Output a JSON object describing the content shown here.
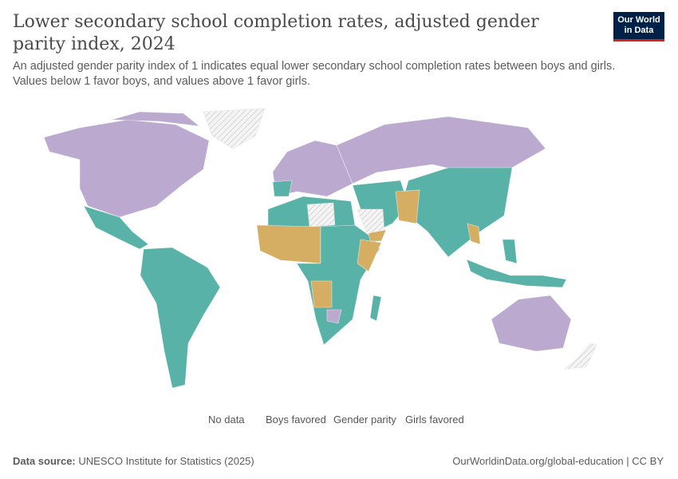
{
  "header": {
    "title": "Lower secondary school completion rates, adjusted gender parity index, 2024",
    "subtitle": "An adjusted gender parity index of 1 indicates equal lower secondary school completion rates between boys and girls. Values below 1 favor boys, and values above 1 favor girls.",
    "logo": "Our World in Data"
  },
  "chart_data": {
    "type": "map",
    "title": "Lower secondary school completion rates, adjusted gender parity index, 2024",
    "legend": {
      "no_data": "No data",
      "categories": [
        {
          "label": "Boys favored",
          "color": "#d6ae63"
        },
        {
          "label": "Gender parity",
          "color": "#bba9d0"
        },
        {
          "label": "Girls favored",
          "color": "#58b2a7"
        }
      ]
    },
    "no_data_color": "#eeeeee"
  },
  "footer": {
    "source_label": "Data source:",
    "source": "UNESCO Institute for Statistics (2025)",
    "url": "OurWorldinData.org/global-education | CC BY"
  }
}
